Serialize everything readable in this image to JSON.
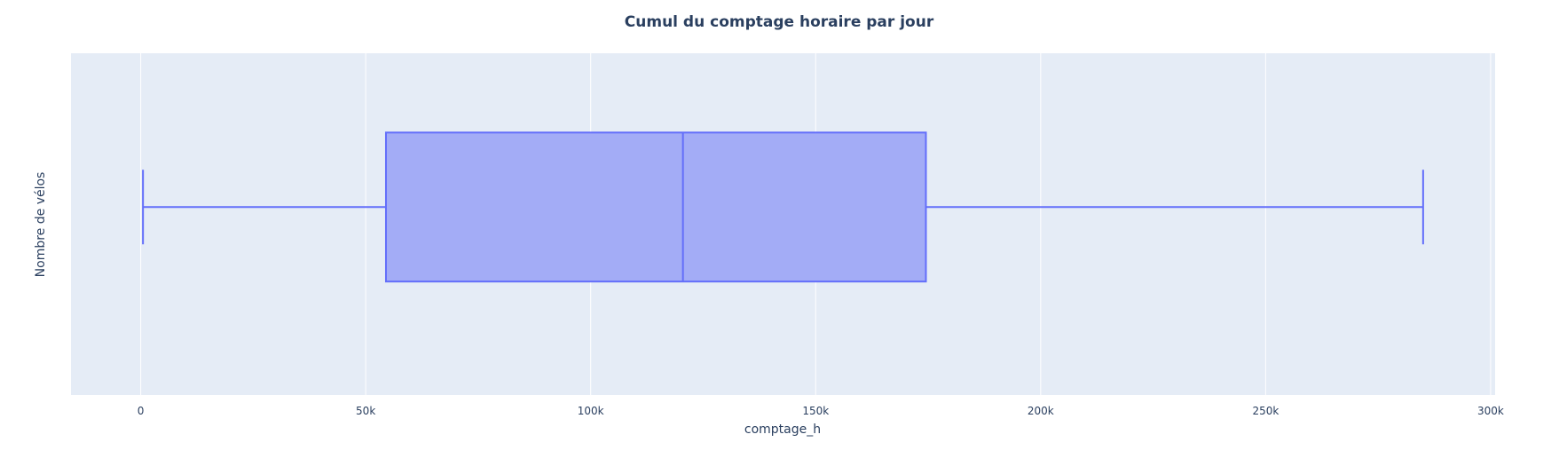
{
  "chart_data": {
    "type": "box",
    "title": "Cumul du comptage horaire par jour",
    "xlabel": "comptage_h",
    "ylabel": "Nombre de vélos",
    "xlim": [
      -15500,
      301000
    ],
    "x_ticks": [
      0,
      50000,
      100000,
      150000,
      200000,
      250000,
      300000
    ],
    "x_tick_labels": [
      "0",
      "50k",
      "100k",
      "150k",
      "200k",
      "250k",
      "300k"
    ],
    "grid": true,
    "orientation": "horizontal",
    "box": {
      "min": 500,
      "q1": 54500,
      "median": 120500,
      "q3": 174500,
      "max": 285000
    },
    "colors": {
      "box_fill": "#a3acf6",
      "box_line": "#636efa",
      "plot_bg": "#e5ecf6",
      "grid": "#ffffff",
      "text": "#2a3f5f"
    }
  }
}
